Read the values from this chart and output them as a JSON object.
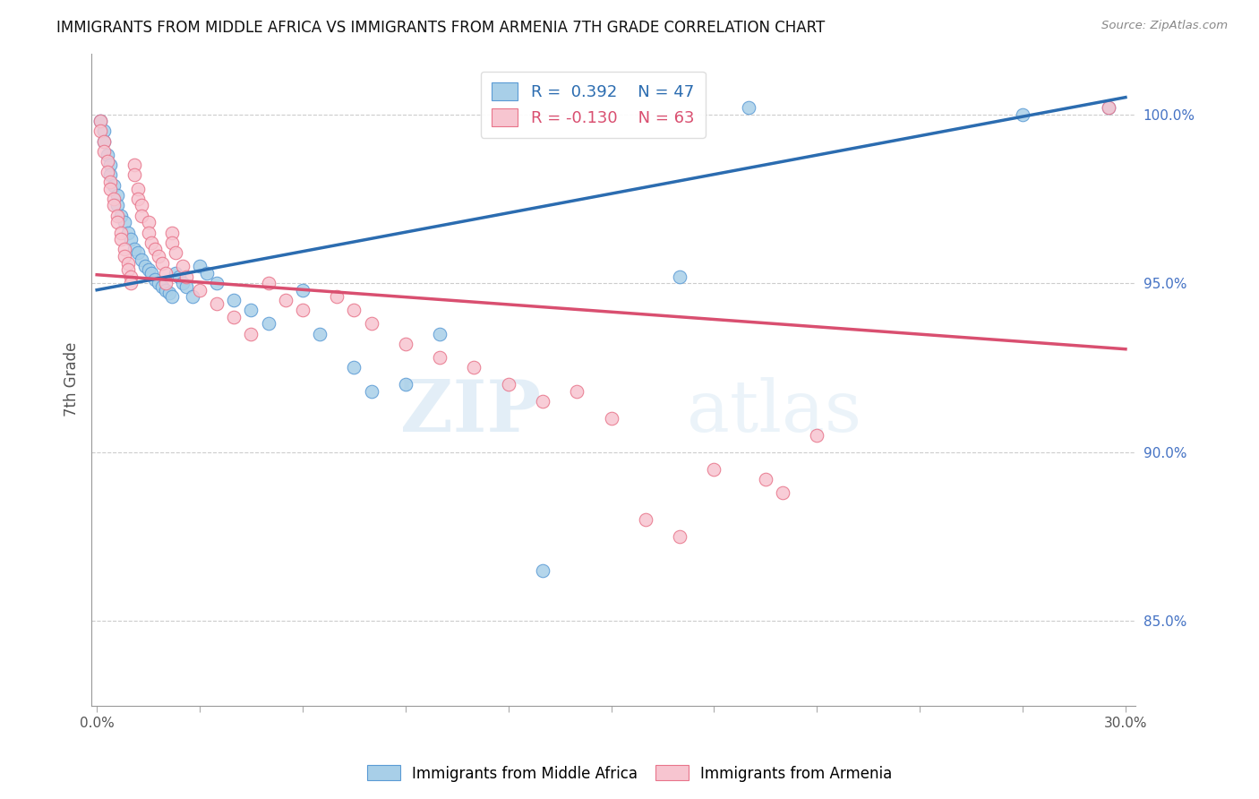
{
  "title": "IMMIGRANTS FROM MIDDLE AFRICA VS IMMIGRANTS FROM ARMENIA 7TH GRADE CORRELATION CHART",
  "source": "Source: ZipAtlas.com",
  "ylabel": "7th Grade",
  "ymin": 82.5,
  "ymax": 101.8,
  "xmin": -0.0015,
  "xmax": 0.303,
  "legend_blue_r": "R =  0.392",
  "legend_blue_n": "N = 47",
  "legend_pink_r": "R = -0.130",
  "legend_pink_n": "N = 63",
  "legend_label_blue": "Immigrants from Middle Africa",
  "legend_label_pink": "Immigrants from Armenia",
  "watermark_zip": "ZIP",
  "watermark_atlas": "atlas",
  "blue_color": "#a8cfe8",
  "pink_color": "#f7c5d0",
  "blue_edge_color": "#5b9bd5",
  "pink_edge_color": "#e8748a",
  "blue_line_color": "#2b6cb0",
  "pink_line_color": "#d94f70",
  "ytick_vals": [
    85.0,
    90.0,
    95.0,
    100.0
  ],
  "ytick_labels": [
    "85.0%",
    "90.0%",
    "95.0%",
    "100.0%"
  ],
  "blue_trendline": [
    [
      0.0,
      94.8
    ],
    [
      0.3,
      100.5
    ]
  ],
  "pink_trendline": [
    [
      0.0,
      95.25
    ],
    [
      0.3,
      93.05
    ]
  ],
  "blue_scatter": [
    [
      0.001,
      99.8
    ],
    [
      0.002,
      99.5
    ],
    [
      0.002,
      99.2
    ],
    [
      0.003,
      98.8
    ],
    [
      0.004,
      98.5
    ],
    [
      0.004,
      98.2
    ],
    [
      0.005,
      97.9
    ],
    [
      0.006,
      97.6
    ],
    [
      0.006,
      97.3
    ],
    [
      0.007,
      97.0
    ],
    [
      0.008,
      96.8
    ],
    [
      0.009,
      96.5
    ],
    [
      0.01,
      96.3
    ],
    [
      0.011,
      96.0
    ],
    [
      0.012,
      95.9
    ],
    [
      0.013,
      95.7
    ],
    [
      0.014,
      95.5
    ],
    [
      0.015,
      95.4
    ],
    [
      0.016,
      95.3
    ],
    [
      0.017,
      95.1
    ],
    [
      0.018,
      95.0
    ],
    [
      0.019,
      94.9
    ],
    [
      0.02,
      94.8
    ],
    [
      0.021,
      94.7
    ],
    [
      0.022,
      94.6
    ],
    [
      0.023,
      95.3
    ],
    [
      0.024,
      95.2
    ],
    [
      0.025,
      95.0
    ],
    [
      0.026,
      94.9
    ],
    [
      0.028,
      94.6
    ],
    [
      0.03,
      95.5
    ],
    [
      0.032,
      95.3
    ],
    [
      0.035,
      95.0
    ],
    [
      0.04,
      94.5
    ],
    [
      0.045,
      94.2
    ],
    [
      0.05,
      93.8
    ],
    [
      0.06,
      94.8
    ],
    [
      0.065,
      93.5
    ],
    [
      0.075,
      92.5
    ],
    [
      0.08,
      91.8
    ],
    [
      0.09,
      92.0
    ],
    [
      0.1,
      93.5
    ],
    [
      0.13,
      86.5
    ],
    [
      0.17,
      95.2
    ],
    [
      0.19,
      100.2
    ],
    [
      0.27,
      100.0
    ],
    [
      0.295,
      100.2
    ]
  ],
  "pink_scatter": [
    [
      0.001,
      99.8
    ],
    [
      0.001,
      99.5
    ],
    [
      0.002,
      99.2
    ],
    [
      0.002,
      98.9
    ],
    [
      0.003,
      98.6
    ],
    [
      0.003,
      98.3
    ],
    [
      0.004,
      98.0
    ],
    [
      0.004,
      97.8
    ],
    [
      0.005,
      97.5
    ],
    [
      0.005,
      97.3
    ],
    [
      0.006,
      97.0
    ],
    [
      0.006,
      96.8
    ],
    [
      0.007,
      96.5
    ],
    [
      0.007,
      96.3
    ],
    [
      0.008,
      96.0
    ],
    [
      0.008,
      95.8
    ],
    [
      0.009,
      95.6
    ],
    [
      0.009,
      95.4
    ],
    [
      0.01,
      95.2
    ],
    [
      0.01,
      95.0
    ],
    [
      0.011,
      98.5
    ],
    [
      0.011,
      98.2
    ],
    [
      0.012,
      97.8
    ],
    [
      0.012,
      97.5
    ],
    [
      0.013,
      97.3
    ],
    [
      0.013,
      97.0
    ],
    [
      0.015,
      96.8
    ],
    [
      0.015,
      96.5
    ],
    [
      0.016,
      96.2
    ],
    [
      0.017,
      96.0
    ],
    [
      0.018,
      95.8
    ],
    [
      0.019,
      95.6
    ],
    [
      0.02,
      95.3
    ],
    [
      0.02,
      95.0
    ],
    [
      0.022,
      96.5
    ],
    [
      0.022,
      96.2
    ],
    [
      0.023,
      95.9
    ],
    [
      0.025,
      95.5
    ],
    [
      0.026,
      95.2
    ],
    [
      0.03,
      94.8
    ],
    [
      0.035,
      94.4
    ],
    [
      0.04,
      94.0
    ],
    [
      0.045,
      93.5
    ],
    [
      0.05,
      95.0
    ],
    [
      0.055,
      94.5
    ],
    [
      0.06,
      94.2
    ],
    [
      0.07,
      94.6
    ],
    [
      0.075,
      94.2
    ],
    [
      0.08,
      93.8
    ],
    [
      0.09,
      93.2
    ],
    [
      0.1,
      92.8
    ],
    [
      0.11,
      92.5
    ],
    [
      0.12,
      92.0
    ],
    [
      0.13,
      91.5
    ],
    [
      0.14,
      91.8
    ],
    [
      0.15,
      91.0
    ],
    [
      0.16,
      88.0
    ],
    [
      0.17,
      87.5
    ],
    [
      0.18,
      89.5
    ],
    [
      0.195,
      89.2
    ],
    [
      0.2,
      88.8
    ],
    [
      0.21,
      90.5
    ],
    [
      0.295,
      100.2
    ]
  ]
}
